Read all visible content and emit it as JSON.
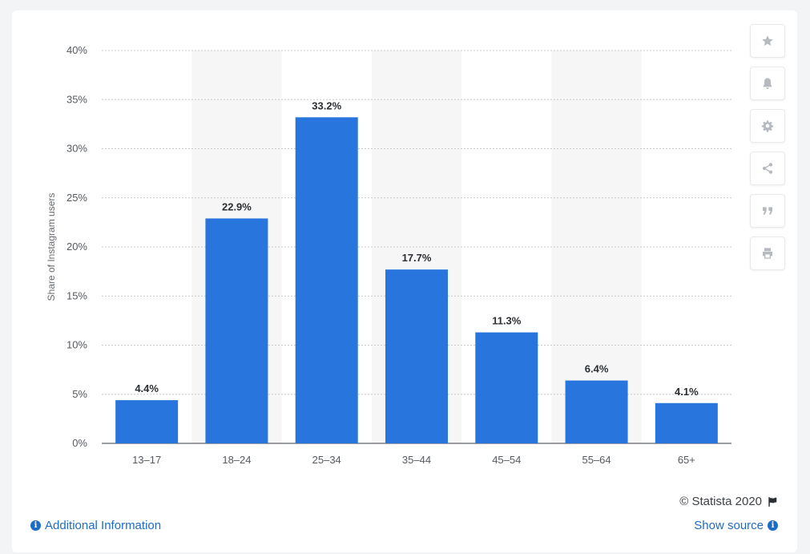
{
  "chart_data": {
    "type": "bar",
    "categories": [
      "13-17",
      "18-24",
      "25-34",
      "35-44",
      "45-54",
      "55-64",
      "65+"
    ],
    "values": [
      4.4,
      22.9,
      33.2,
      17.7,
      11.3,
      6.4,
      4.1
    ],
    "value_labels": [
      "4.4%",
      "22.9%",
      "33.2%",
      "17.7%",
      "11.3%",
      "6.4%",
      "4.1%"
    ],
    "ylabel": "Share of Instagram users",
    "xlabel": "",
    "ylim": [
      0,
      40
    ],
    "yticks": [
      "0%",
      "5%",
      "10%",
      "15%",
      "20%",
      "25%",
      "30%",
      "35%",
      "40%"
    ],
    "grid": true,
    "bar_color": "#2876dd",
    "alt_band_color": "#f6f6f7"
  },
  "footer": {
    "credit": "© Statista 2020",
    "additional_info": "Additional Information",
    "show_source": "Show source"
  },
  "toolbar": {
    "icons": [
      "star-icon",
      "bell-icon",
      "gear-icon",
      "share-icon",
      "quote-icon",
      "print-icon"
    ]
  }
}
